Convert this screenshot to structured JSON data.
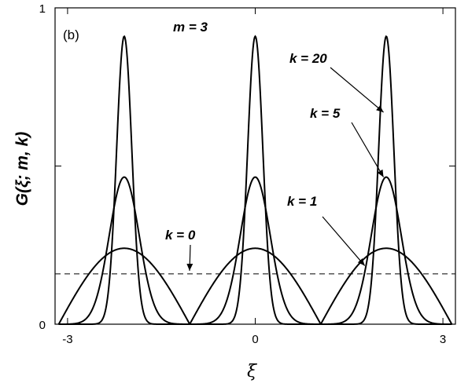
{
  "chart_data": {
    "type": "line",
    "panel_label": "(b)",
    "title": "",
    "xlabel": "ξ",
    "ylabel": "G(ξ; m, k)",
    "xlim": [
      -3.2,
      3.2
    ],
    "ylim": [
      0,
      1
    ],
    "x_ticks": [
      -3,
      0,
      3
    ],
    "x_tick_labels": [
      "-3",
      "0",
      "3"
    ],
    "y_ticks": [
      0,
      1
    ],
    "y_tick_labels": [
      "0",
      "1"
    ],
    "m": 3,
    "grid": false,
    "period": 2.0944,
    "series": [
      {
        "k": 0,
        "style": "dashed",
        "kind": "constant",
        "value": 0.159
      },
      {
        "k": 1,
        "style": "solid",
        "kind": "periodic-peaks",
        "peak_x": [
          -2.0944,
          0,
          2.0944
        ],
        "peak_value": 0.24,
        "zero_x": [
          -3.1416,
          -1.0472,
          1.0472,
          3.1416
        ]
      },
      {
        "k": 5,
        "style": "solid",
        "kind": "periodic-peaks",
        "peak_x": [
          -2.0944,
          0,
          2.0944
        ],
        "peak_value": 0.465,
        "zero_x": [
          -3.1416,
          -1.0472,
          1.0472,
          3.1416
        ]
      },
      {
        "k": 20,
        "style": "solid",
        "kind": "periodic-peaks",
        "peak_x": [
          -2.0944,
          0,
          2.0944
        ],
        "peak_value": 0.91,
        "zero_x": [
          -3.1416,
          -1.0472,
          1.0472,
          3.1416
        ]
      }
    ],
    "annotations": [
      {
        "name": "m",
        "text": "m = 3"
      },
      {
        "name": "k20",
        "text": "k = 20",
        "points_to": {
          "x": 2.05,
          "y": 0.67
        }
      },
      {
        "name": "k5",
        "text": "k = 5",
        "points_to": {
          "x": 2.05,
          "y": 0.465
        }
      },
      {
        "name": "k1",
        "text": "k = 1",
        "points_to": {
          "x": 1.75,
          "y": 0.185
        }
      },
      {
        "name": "k0",
        "text": "k = 0",
        "points_to": {
          "x": -1.05,
          "y": 0.159
        }
      }
    ]
  }
}
